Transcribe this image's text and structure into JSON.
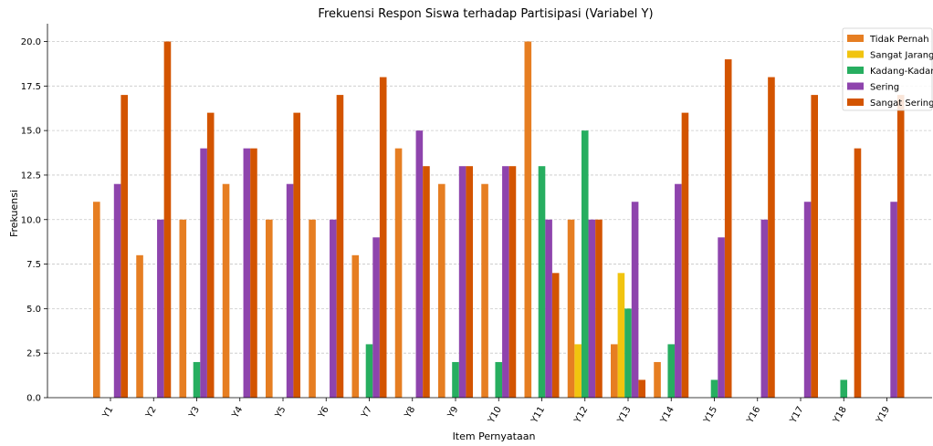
{
  "chart_data": {
    "type": "bar",
    "title": "Frekuensi Respon Siswa terhadap Partisipasi (Variabel Y)",
    "xlabel": "Item Pernyataan",
    "ylabel": "Frekuensi",
    "ylim": [
      0,
      21
    ],
    "yticks": [
      "0.0",
      "2.5",
      "5.0",
      "7.5",
      "10.0",
      "12.5",
      "15.0",
      "17.5",
      "20.0"
    ],
    "grid": "y",
    "legend_position": "top-right",
    "categories": [
      "Y1",
      "Y2",
      "Y3",
      "Y4",
      "Y5",
      "Y6",
      "Y7",
      "Y8",
      "Y9",
      "Y10",
      "Y11",
      "Y12",
      "Y13",
      "Y14",
      "Y15",
      "Y16",
      "Y17",
      "Y18",
      "Y19"
    ],
    "series": [
      {
        "name": "Tidak Pernah",
        "color": "#e67e22",
        "values": [
          11,
          8,
          10,
          12,
          10,
          10,
          8,
          14,
          12,
          12,
          20,
          10,
          3,
          2,
          0,
          0,
          0,
          0,
          0
        ]
      },
      {
        "name": "Sangat Jarang",
        "color": "#f1c40f",
        "values": [
          0,
          0,
          0,
          0,
          0,
          0,
          0,
          0,
          0,
          0,
          0,
          3,
          7,
          0,
          0,
          0,
          0,
          0,
          0
        ]
      },
      {
        "name": "Kadang-Kadang",
        "color": "#27ae60",
        "values": [
          0,
          0,
          2,
          0,
          0,
          0,
          3,
          0,
          2,
          2,
          13,
          15,
          5,
          3,
          1,
          0,
          0,
          1,
          0
        ]
      },
      {
        "name": "Sering",
        "color": "#8e44ad",
        "values": [
          12,
          10,
          14,
          14,
          12,
          10,
          9,
          15,
          13,
          13,
          10,
          10,
          11,
          12,
          9,
          10,
          11,
          0,
          11
        ]
      },
      {
        "name": "Sangat Sering",
        "color": "#d35400",
        "values": [
          17,
          20,
          16,
          14,
          16,
          17,
          18,
          13,
          13,
          13,
          7,
          10,
          1,
          16,
          19,
          18,
          17,
          14,
          17
        ]
      }
    ]
  }
}
